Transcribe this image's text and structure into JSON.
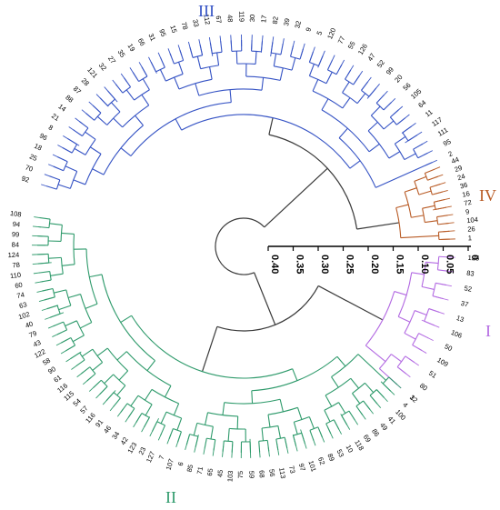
{
  "scale": {
    "ticks": [
      "0.40",
      "0.35",
      "0.30",
      "0.25",
      "0.20",
      "0.15",
      "0.10",
      "0.05",
      "0"
    ],
    "tick_values": [
      0.4,
      0.35,
      0.3,
      0.25,
      0.2,
      0.15,
      0.1,
      0.05,
      0.0
    ]
  },
  "clusters": [
    {
      "label": "I",
      "color": "#b36ae2",
      "leaves": [
        "125",
        "83",
        "52",
        "37",
        "13",
        "106",
        "50",
        "109",
        "51",
        "80",
        "12"
      ]
    },
    {
      "label": "II",
      "color": "#2e9a6b",
      "leaves": [
        "108",
        "94",
        "99",
        "84",
        "124",
        "78",
        "110",
        "60",
        "74",
        "63",
        "102",
        "40",
        "79",
        "43",
        "122",
        "58",
        "90",
        "61",
        "116",
        "115",
        "54",
        "57",
        "116",
        "91",
        "46",
        "34",
        "42",
        "123",
        "23",
        "127",
        "7",
        "107",
        "6",
        "85",
        "71",
        "65",
        "45",
        "103",
        "75",
        "59",
        "68",
        "56",
        "113",
        "73",
        "97",
        "101",
        "62",
        "89",
        "53",
        "10",
        "118",
        "69",
        "86",
        "49",
        "41",
        "100",
        "4",
        "3"
      ]
    },
    {
      "label": "III",
      "color": "#3452c4",
      "leaves": [
        "92",
        "70",
        "25",
        "18",
        "96",
        "8",
        "21",
        "14",
        "88",
        "87",
        "28",
        "121",
        "32",
        "27",
        "35",
        "19",
        "66",
        "31",
        "95",
        "15",
        "78",
        "33",
        "112",
        "67",
        "48",
        "119",
        "30",
        "17",
        "82",
        "39",
        "32",
        "9",
        "5",
        "120",
        "77",
        "55",
        "126",
        "47",
        "52",
        "99",
        "20",
        "56",
        "105",
        "64",
        "11",
        "117",
        "111",
        "95",
        "2"
      ]
    },
    {
      "label": "IV",
      "color": "#b85a24",
      "leaves": [
        "44",
        "29",
        "24",
        "36",
        "16",
        "72",
        "9",
        "104",
        "26",
        "1"
      ]
    }
  ]
}
